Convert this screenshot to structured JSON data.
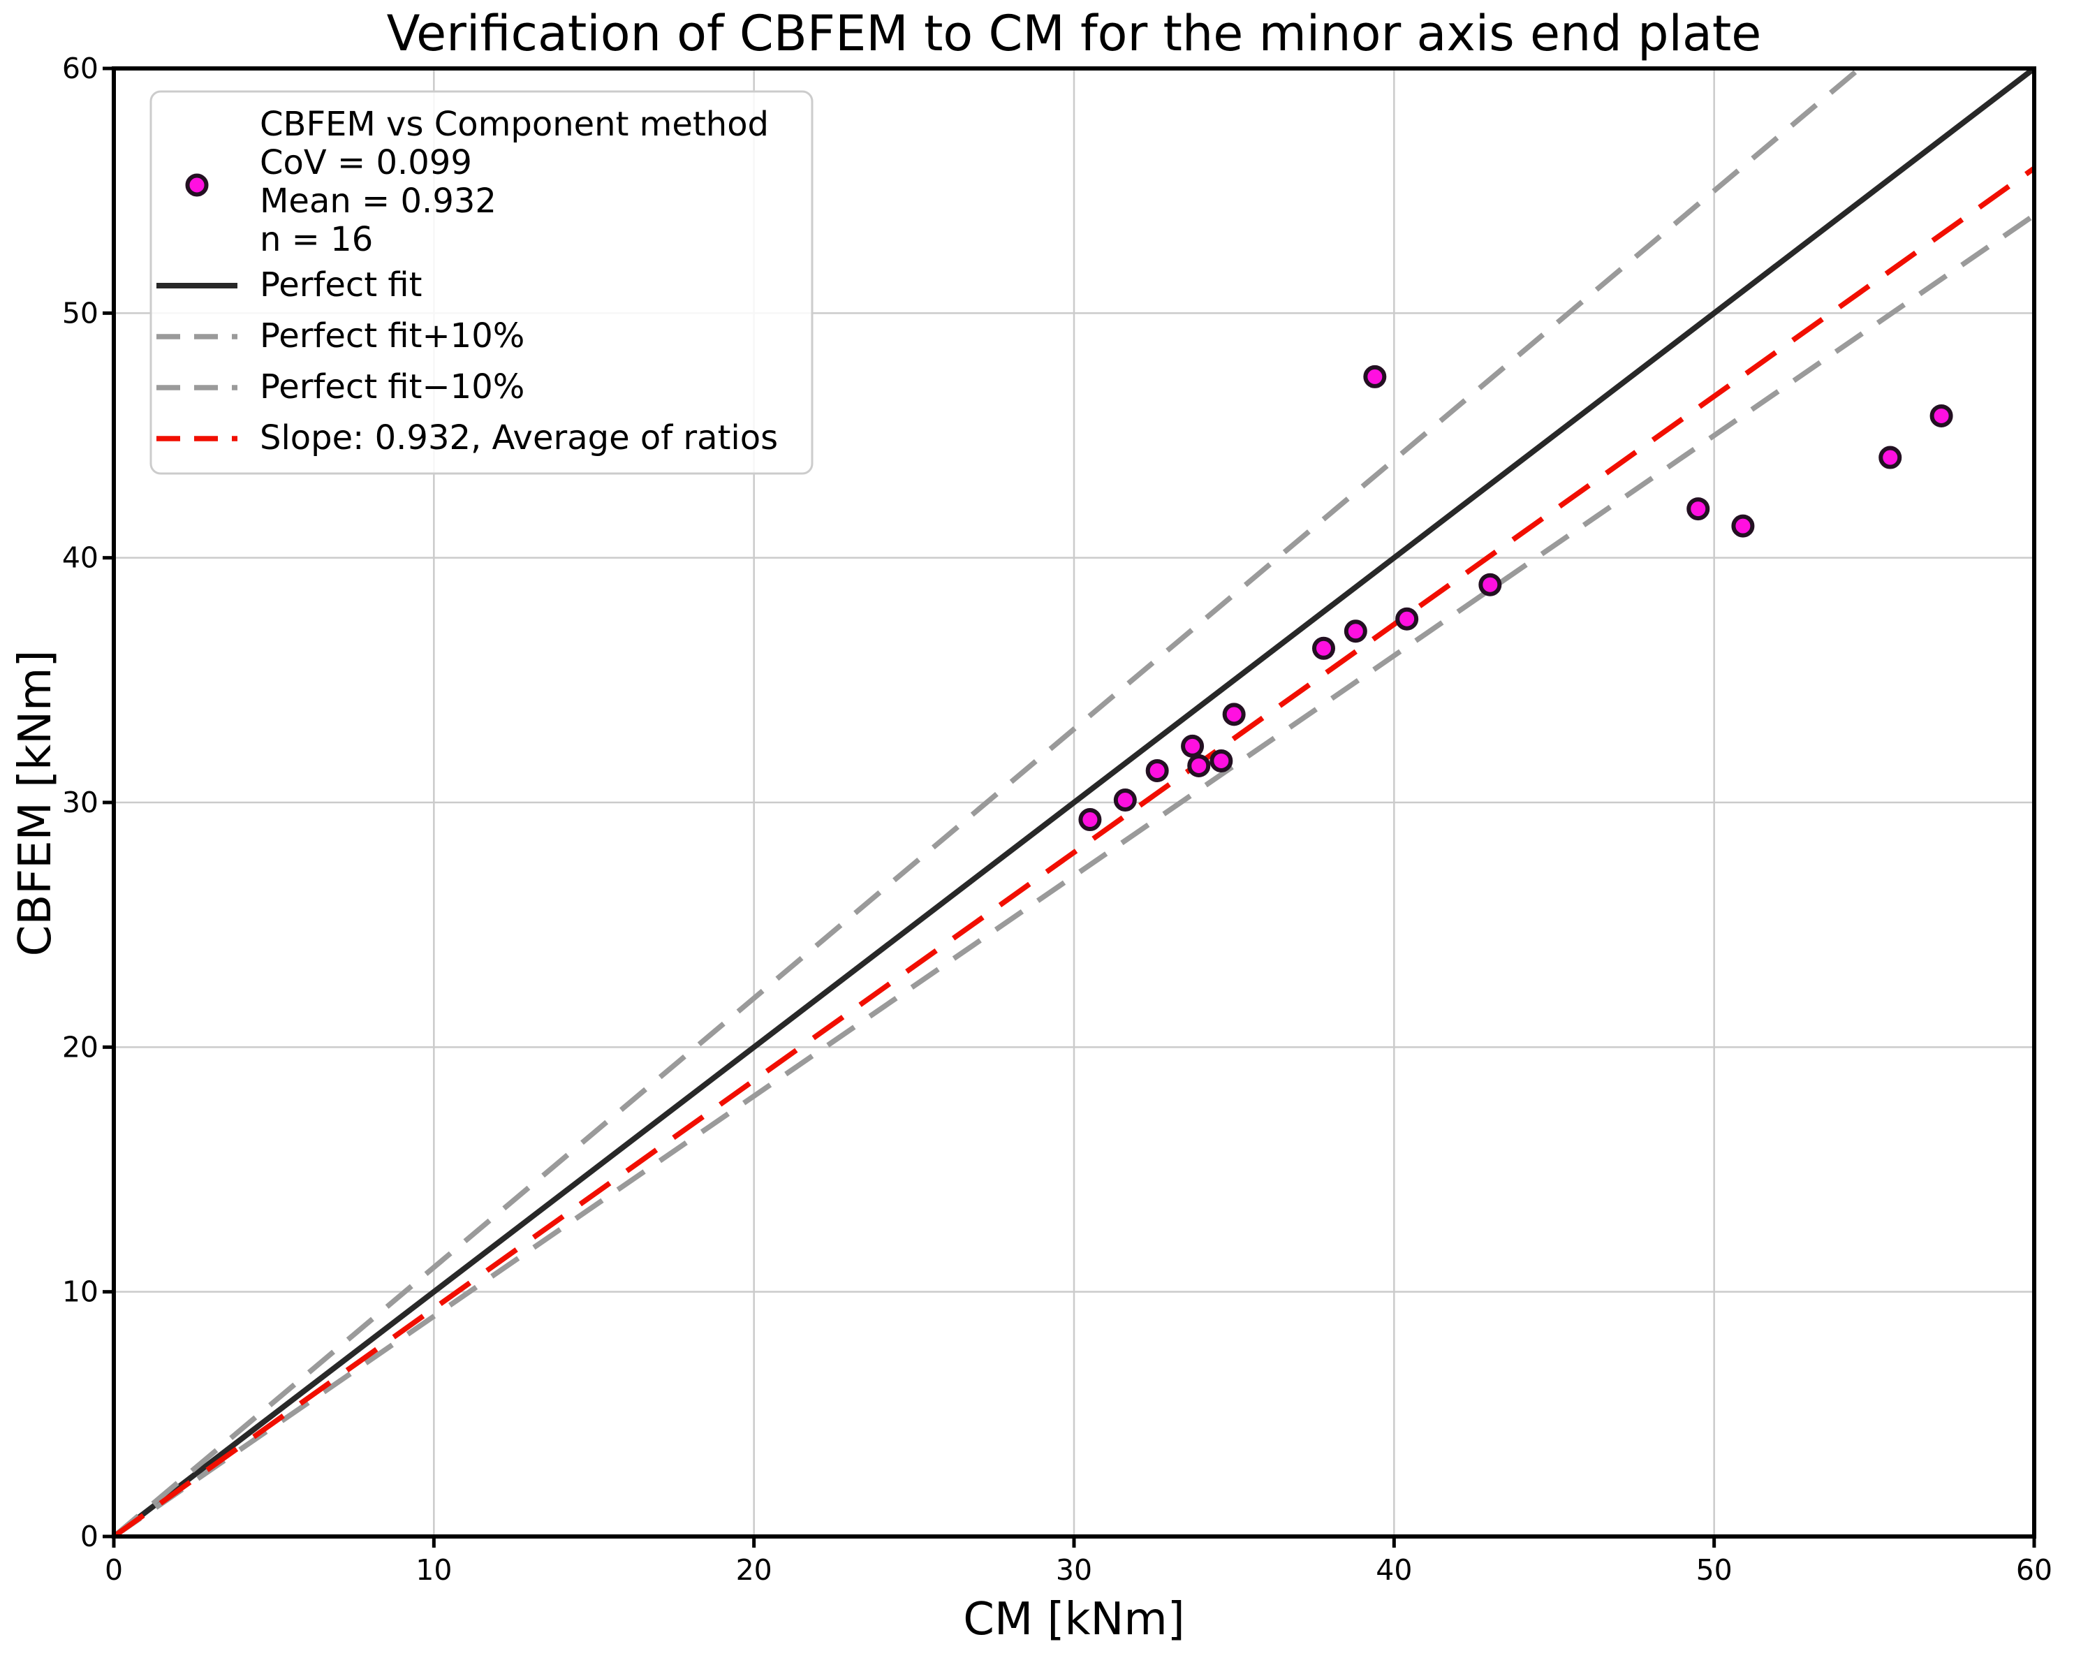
{
  "chart_data": {
    "type": "scatter",
    "title": "Verification of CBFEM to CM for the minor axis end plate",
    "xlabel": "CM [kNm]",
    "ylabel": "CBFEM [kNm]",
    "xlim": [
      0,
      60
    ],
    "ylim": [
      0,
      60
    ],
    "xticks": [
      0,
      10,
      20,
      30,
      40,
      50,
      60
    ],
    "yticks": [
      0,
      10,
      20,
      30,
      40,
      50,
      60
    ],
    "grid": true,
    "legend_position": "upper left",
    "series_label_lines": [
      "CBFEM vs Component method",
      "CoV = 0.099",
      "Mean = 0.932",
      "n = 16"
    ],
    "stats": {
      "cov": 0.099,
      "mean": 0.932,
      "n": 16
    },
    "points": [
      [
        30.5,
        29.3
      ],
      [
        31.6,
        30.1
      ],
      [
        32.6,
        31.3
      ],
      [
        33.7,
        32.3
      ],
      [
        33.9,
        31.5
      ],
      [
        34.6,
        31.7
      ],
      [
        35.0,
        33.6
      ],
      [
        37.8,
        36.3
      ],
      [
        38.8,
        37.0
      ],
      [
        40.4,
        37.5
      ],
      [
        43.0,
        38.9
      ],
      [
        39.4,
        47.4
      ],
      [
        49.5,
        42.0
      ],
      [
        50.9,
        41.3
      ],
      [
        55.5,
        44.1
      ],
      [
        57.1,
        45.8
      ]
    ],
    "lines": [
      {
        "label": "Perfect fit",
        "slope": 1.0,
        "style": "solid",
        "color": "#282828"
      },
      {
        "label": "Perfect fit+10%",
        "slope": 1.1,
        "style": "dashed",
        "color": "#9A9A9A"
      },
      {
        "label": "Perfect fit−10%",
        "slope": 0.9,
        "style": "dashed",
        "color": "#9A9A9A"
      },
      {
        "label": "Slope: 0.932, Average of ratios",
        "slope": 0.932,
        "style": "dashed",
        "color": "#F10E00"
      }
    ],
    "marker": {
      "shape": "circle",
      "fill": "#FF10E0",
      "edge": "#231022"
    },
    "colors": {
      "grid": "#CBCBCB",
      "axis": "#000000",
      "text": "#000000",
      "legend_border": "#CCCCCC",
      "background": "#FFFFFF"
    }
  }
}
